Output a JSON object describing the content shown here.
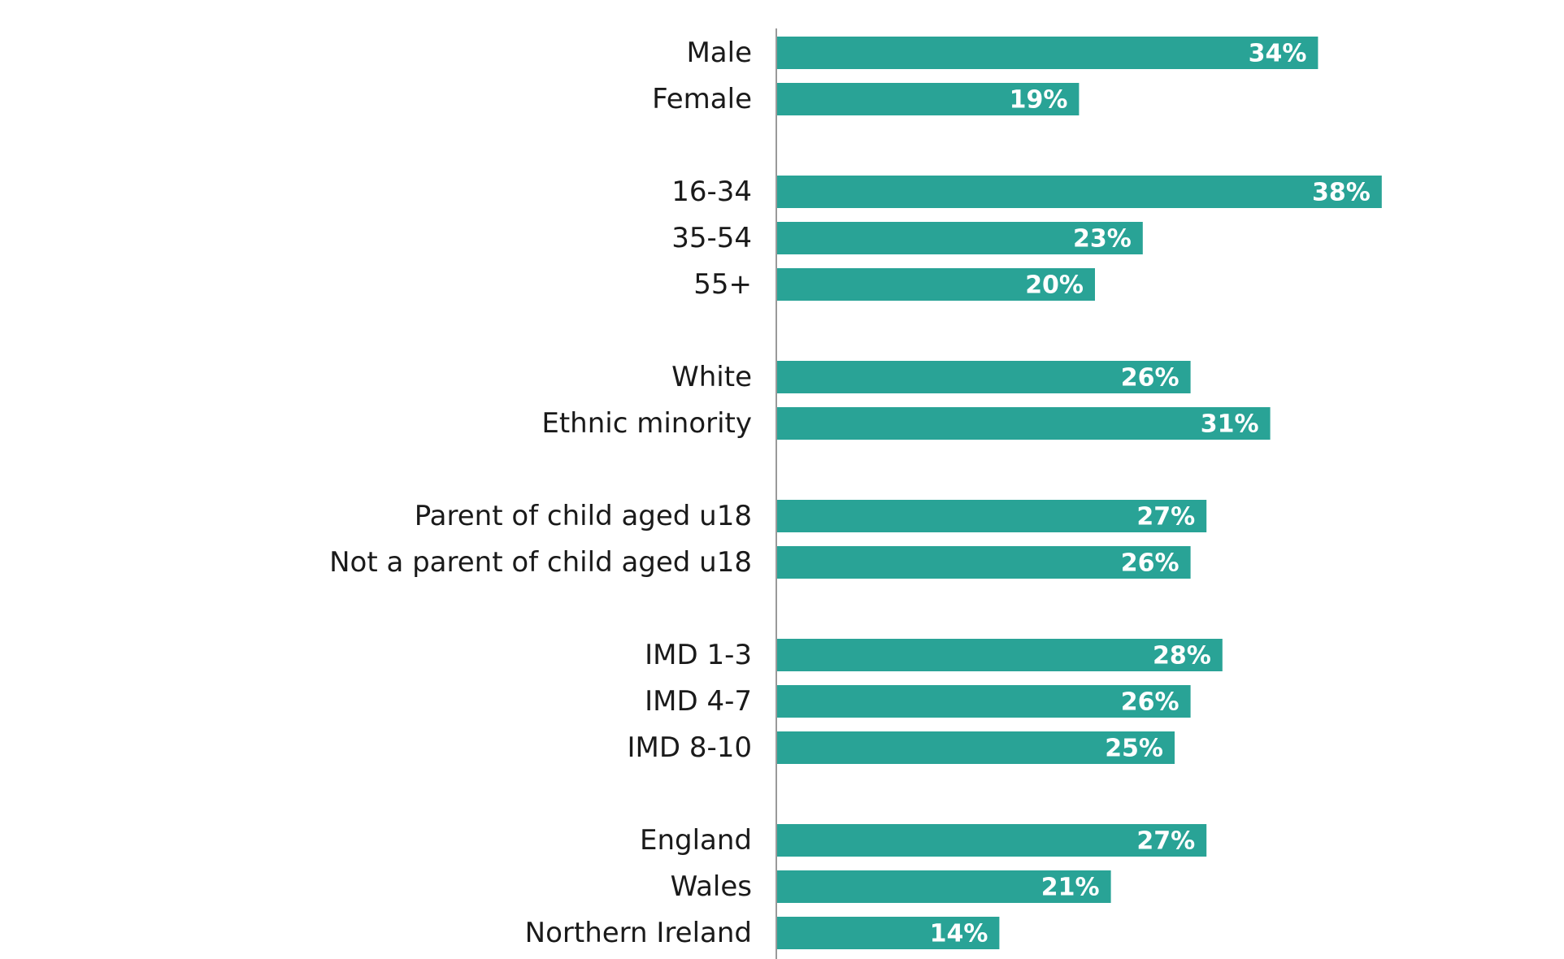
{
  "chart_data": {
    "type": "bar",
    "orientation": "horizontal",
    "bar_color": "#29a396",
    "axis_color": "#9a9a9a",
    "label_color": "#1a1a1a",
    "value_label_color": "#ffffff",
    "xlim": [
      0,
      40
    ],
    "grid": false,
    "legend": "none",
    "title": "",
    "xlabel": "",
    "ylabel": "",
    "groups": [
      {
        "categories": [
          "Male",
          "Female"
        ],
        "values": [
          34,
          19
        ],
        "value_labels": [
          "34%",
          "19%"
        ]
      },
      {
        "categories": [
          "16-34",
          "35-54",
          "55+"
        ],
        "values": [
          38,
          23,
          20
        ],
        "value_labels": [
          "38%",
          "23%",
          "20%"
        ]
      },
      {
        "categories": [
          "White",
          "Ethnic minority"
        ],
        "values": [
          26,
          31
        ],
        "value_labels": [
          "26%",
          "31%"
        ]
      },
      {
        "categories": [
          "Parent of child aged u18",
          "Not a parent of child aged u18"
        ],
        "values": [
          27,
          26
        ],
        "value_labels": [
          "27%",
          "26%"
        ]
      },
      {
        "categories": [
          "IMD 1-3",
          "IMD 4-7",
          "IMD 8-10"
        ],
        "values": [
          28,
          26,
          25
        ],
        "value_labels": [
          "28%",
          "26%",
          "25%"
        ]
      },
      {
        "categories": [
          "England",
          "Wales",
          "Northern Ireland"
        ],
        "values": [
          27,
          21,
          14
        ],
        "value_labels": [
          "27%",
          "21%",
          "14%"
        ]
      }
    ]
  }
}
